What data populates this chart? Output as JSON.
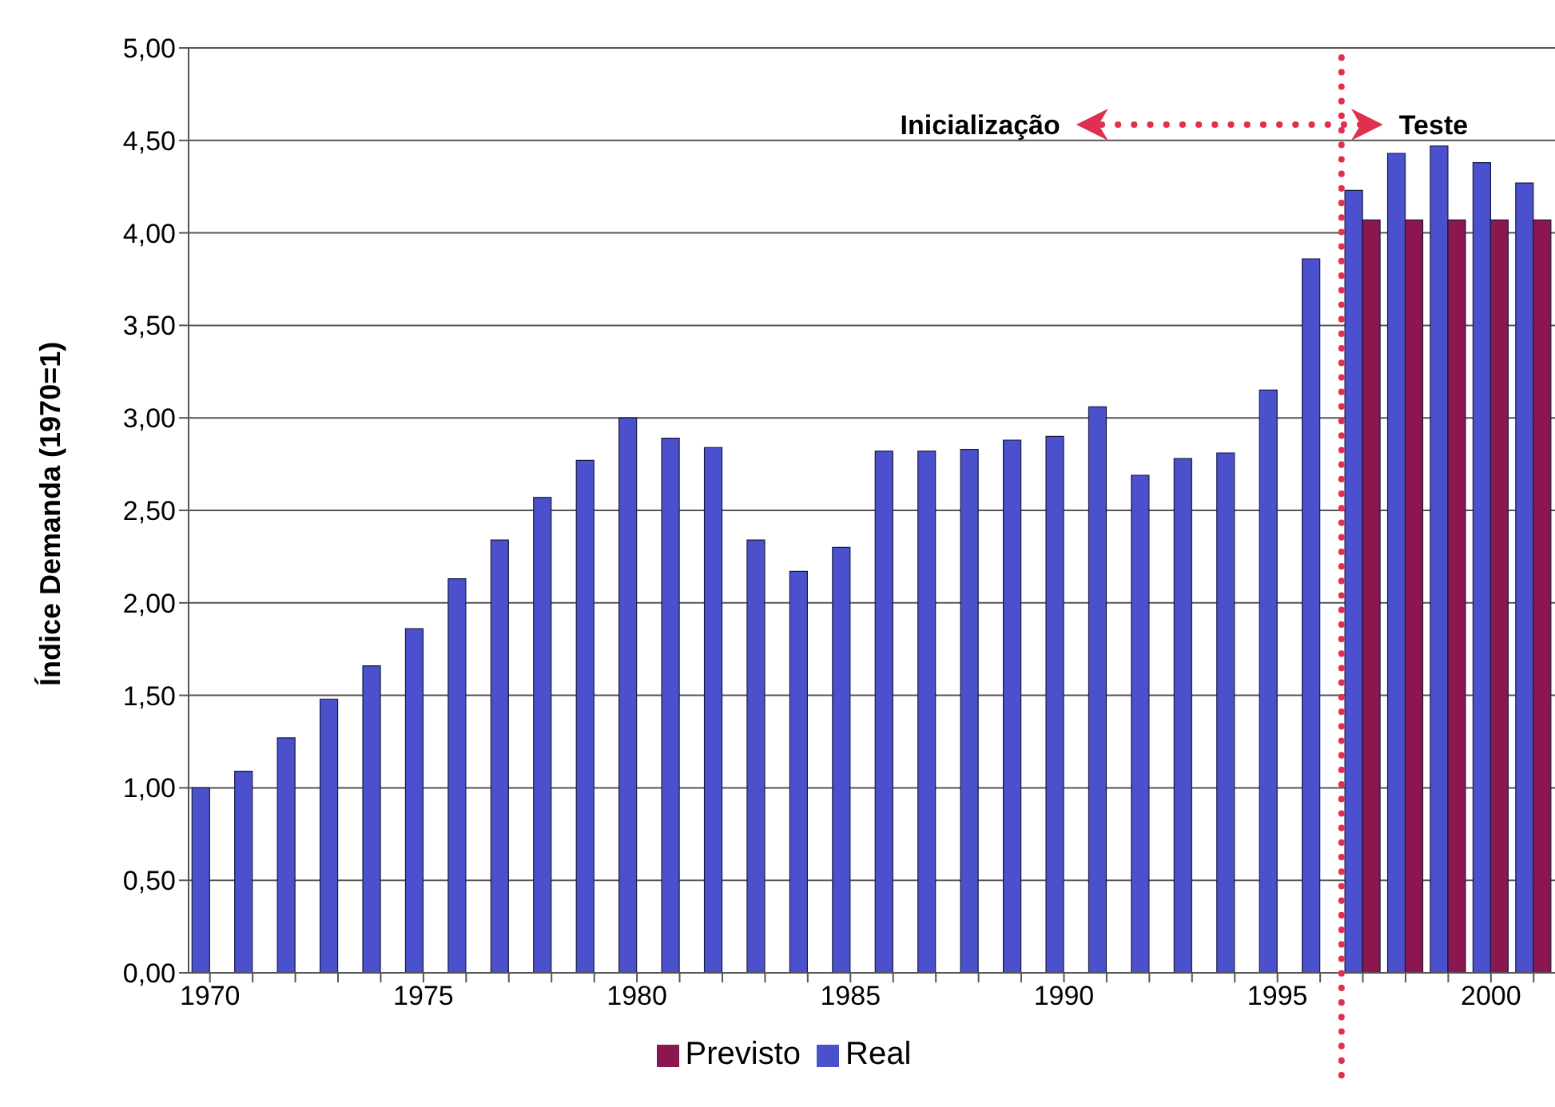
{
  "chart_data": {
    "type": "bar",
    "ylabel": "Índice Demanda (1970=1)",
    "categories": [
      "1970",
      null,
      null,
      null,
      null,
      "1975",
      null,
      null,
      null,
      null,
      "1980",
      null,
      null,
      null,
      null,
      "1985",
      null,
      null,
      null,
      null,
      "1990",
      null,
      null,
      null,
      null,
      "1995",
      null,
      null,
      null,
      null,
      "2000",
      null
    ],
    "series": [
      {
        "name": "Real",
        "color": "#4b50cc",
        "values": [
          1.0,
          1.09,
          1.27,
          1.48,
          1.66,
          1.86,
          2.13,
          2.34,
          2.57,
          2.77,
          3.0,
          2.89,
          2.84,
          2.34,
          2.17,
          2.3,
          2.82,
          2.82,
          2.83,
          2.88,
          2.9,
          3.06,
          2.69,
          2.78,
          2.81,
          3.15,
          3.86,
          4.23,
          4.43,
          4.47,
          4.38,
          4.27
        ]
      },
      {
        "name": "Previsto",
        "color": "#8c1650",
        "values": [
          null,
          null,
          null,
          null,
          null,
          null,
          null,
          null,
          null,
          null,
          null,
          null,
          null,
          null,
          null,
          null,
          null,
          null,
          null,
          null,
          null,
          null,
          null,
          null,
          null,
          null,
          null,
          4.07,
          4.07,
          4.07,
          4.07,
          4.07
        ]
      }
    ],
    "ylim": [
      0,
      5
    ],
    "yticks": [
      {
        "value": 0,
        "label": "0,00"
      },
      {
        "value": 0.5,
        "label": "0,50"
      },
      {
        "value": 1,
        "label": "1,00"
      },
      {
        "value": 1.5,
        "label": "1,50"
      },
      {
        "value": 2,
        "label": "2,00"
      },
      {
        "value": 2.5,
        "label": "2,50"
      },
      {
        "value": 3,
        "label": "3,00"
      },
      {
        "value": 3.5,
        "label": "3,50"
      },
      {
        "value": 4,
        "label": "4,00"
      },
      {
        "value": 4.5,
        "label": "4,50"
      },
      {
        "value": 5,
        "label": "5,00"
      }
    ],
    "annotations": [
      "Inicialização",
      "Teste"
    ],
    "grid": "y",
    "legend": "bottom"
  }
}
